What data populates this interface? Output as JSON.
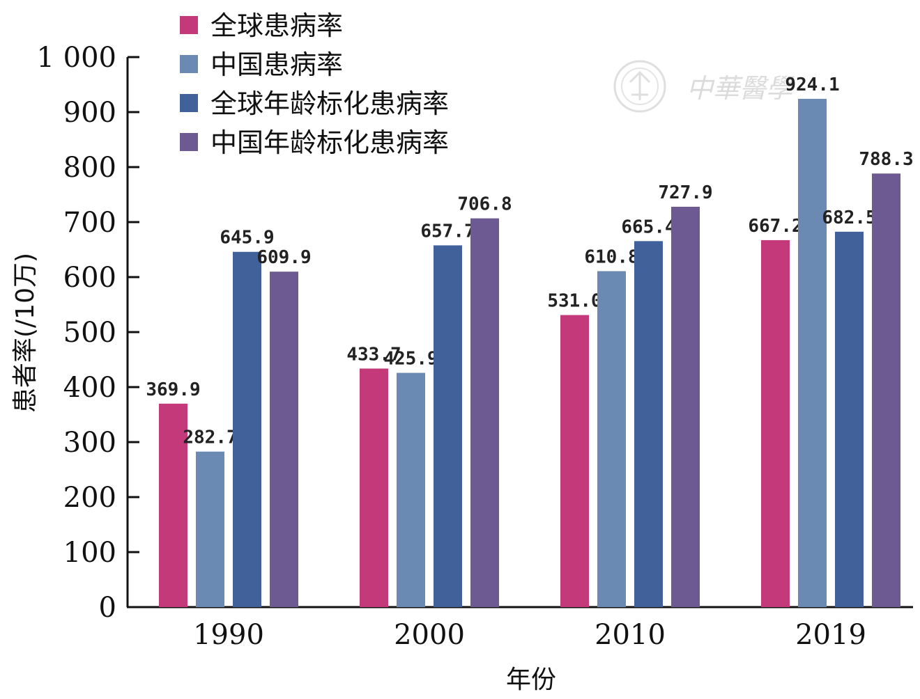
{
  "chart_data": {
    "type": "bar",
    "title": "",
    "xlabel": "年份",
    "ylabel": "患者率(/10万)",
    "ylim": [
      0,
      1000
    ],
    "yticks": [
      "0",
      "100",
      "200",
      "300",
      "400",
      "500",
      "600",
      "700",
      "800",
      "900",
      "1 000"
    ],
    "categories": [
      "1990",
      "2000",
      "2010",
      "2019"
    ],
    "legend_position": "top-left",
    "grid": false,
    "series": [
      {
        "name": "全球患病率",
        "color": "#c4397a",
        "values": [
          369.9,
          433.7,
          531.0,
          667.2
        ],
        "labels": [
          "369.9",
          "433.7",
          "531.0",
          "667.2"
        ]
      },
      {
        "name": "中国患病率",
        "color": "#6a8ab4",
        "values": [
          282.7,
          425.9,
          610.8,
          924.1
        ],
        "labels": [
          "282.7",
          "425.9",
          "610.8",
          "924.1"
        ]
      },
      {
        "name": "全球年龄标化患病率",
        "color": "#41619a",
        "values": [
          645.9,
          657.7,
          665.4,
          682.5
        ],
        "labels": [
          "645.9",
          "657.7",
          "665.4",
          "682.5"
        ]
      },
      {
        "name": "中国年龄标化患病率",
        "color": "#6e5a93",
        "values": [
          609.9,
          706.8,
          727.9,
          788.3
        ],
        "labels": [
          "609.9",
          "706.8",
          "727.9",
          "788.3"
        ]
      }
    ]
  },
  "watermark": {
    "text": "中華醫學",
    "icon": "emblem-icon"
  }
}
